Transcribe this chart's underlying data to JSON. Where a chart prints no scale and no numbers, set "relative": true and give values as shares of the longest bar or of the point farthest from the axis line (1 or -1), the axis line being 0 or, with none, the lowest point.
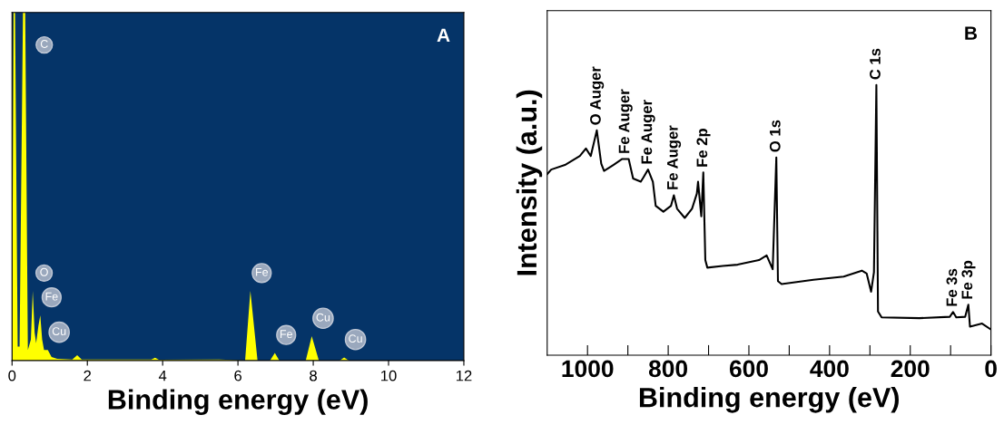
{
  "chart_data": [
    {
      "type": "area",
      "xlabel": "Binding energy (eV)",
      "relative": true,
      "xlim": [
        0,
        12
      ],
      "xticks": [
        0,
        2,
        4,
        6,
        8,
        10,
        12
      ],
      "tick_labels": "x",
      "grid": false,
      "series": [
        {
          "color": "#ffff00",
          "x": [
            0,
            0.04,
            0.08,
            0.15,
            0.2,
            0.29,
            0.35,
            0.42,
            0.5,
            0.55,
            0.6,
            0.64,
            0.7,
            0.75,
            0.8,
            0.85,
            0.95,
            1.05,
            1.2,
            1.6,
            1.73,
            1.85,
            3.7,
            3.8,
            3.9,
            5.5,
            6.19,
            6.33,
            6.52,
            6.85,
            6.98,
            7.1,
            7.8,
            7.96,
            8.15,
            8.7,
            8.82,
            8.95,
            12
          ],
          "values": [
            0,
            1,
            1,
            0.04,
            0.04,
            1,
            1,
            0.03,
            0.06,
            0.2,
            0.08,
            0.05,
            0.1,
            0.13,
            0.06,
            0.03,
            0.03,
            0.01,
            0.005,
            0.003,
            0.015,
            0.003,
            0.003,
            0.008,
            0.002,
            0.003,
            0,
            0.2,
            0,
            0,
            0.022,
            0,
            0,
            0.07,
            0,
            0,
            0.009,
            0,
            0
          ]
        }
      ],
      "annotations": [
        "A",
        {
          "text": "C",
          "x": 0.32,
          "y": 1
        },
        {
          "text": "O",
          "x": 0.55,
          "y": 0.2
        },
        {
          "text": "Fe",
          "x": 0.75,
          "y": 0.13
        },
        {
          "text": "Cu",
          "x": 0.95,
          "y": 0.03
        },
        {
          "text": "Fe",
          "x": 6.33,
          "y": 0.2
        },
        {
          "text": "Fe",
          "x": 6.98,
          "y": 0.022
        },
        {
          "text": "Cu",
          "x": 7.96,
          "y": 0.07
        },
        {
          "text": "Cu",
          "x": 8.82,
          "y": 0.009
        }
      ]
    },
    {
      "type": "line",
      "xlabel": "Binding energy (eV)",
      "ylabel": "Intensity (a.u.)",
      "relative": true,
      "xlim": [
        1100,
        0
      ],
      "xticks": [
        1000,
        {
          "value": 900,
          "label": null
        },
        800,
        {
          "value": 700,
          "label": null
        },
        600,
        {
          "value": 500,
          "label": null
        },
        400,
        {
          "value": 300,
          "label": null
        },
        200,
        {
          "value": 100,
          "label": null
        },
        0
      ],
      "tick_labels": "x",
      "grid": false,
      "marker": "none",
      "line_style": "solid",
      "series": [
        {
          "color": "#000000",
          "x": [
            1100,
            1090,
            1056,
            1019,
            1004,
            992,
            977,
            966,
            959,
            936,
            914,
            898,
            887,
            868,
            861,
            850,
            838,
            831,
            812,
            793,
            786,
            778,
            759,
            741,
            729,
            726,
            718,
            713,
            708,
            703,
            665,
            628,
            575,
            556,
            541,
            532,
            528,
            519,
            440,
            365,
            320,
            308,
            297,
            290,
            284,
            280,
            271,
            177,
            102,
            94,
            86,
            64,
            56,
            52,
            22,
            0
          ],
          "values": [
            0.67,
            0.687,
            0.704,
            0.737,
            0.765,
            0.737,
            0.832,
            0.709,
            0.682,
            0.704,
            0.726,
            0.726,
            0.654,
            0.642,
            0.659,
            0.687,
            0.642,
            0.553,
            0.531,
            0.553,
            0.592,
            0.542,
            0.508,
            0.542,
            0.598,
            0.642,
            0.514,
            0.676,
            0.352,
            0.324,
            0.33,
            0.335,
            0.352,
            0.369,
            0.318,
            0.732,
            0.274,
            0.263,
            0.279,
            0.291,
            0.313,
            0.302,
            0.235,
            0.307,
            1.0,
            0.162,
            0.14,
            0.137,
            0.142,
            0.16,
            0.14,
            0.142,
            0.187,
            0.106,
            0.117,
            0.095
          ]
        }
      ],
      "annotations": [
        "B",
        {
          "text": "O Auger",
          "x": 977,
          "y": 0.832
        },
        {
          "text": "Fe Auger",
          "x": 906,
          "y": 0.726
        },
        {
          "text": "Fe Auger",
          "x": 850,
          "y": 0.687
        },
        {
          "text": "Fe Auger",
          "x": 786,
          "y": 0.592
        },
        {
          "text": "Fe 2p",
          "x": 713,
          "y": 0.676
        },
        {
          "text": "O 1s",
          "x": 532,
          "y": 0.732
        },
        {
          "text": "C 1s",
          "x": 284,
          "y": 1.0
        },
        {
          "text": "Fe 3s",
          "x": 94,
          "y": 0.16
        },
        {
          "text": "Fe 3p",
          "x": 56,
          "y": 0.187
        }
      ]
    }
  ]
}
